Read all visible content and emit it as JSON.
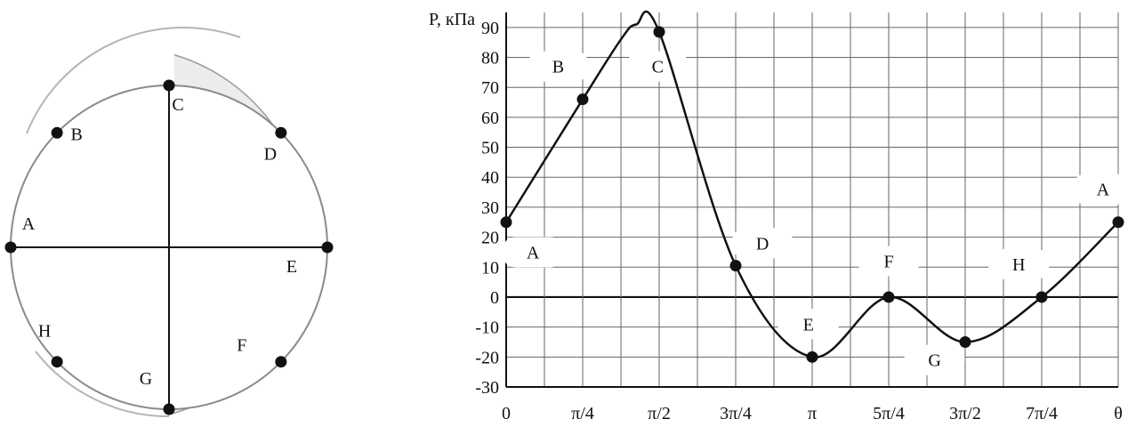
{
  "chart_data": [
    {
      "type": "diagram",
      "points": [
        {
          "label": "A",
          "angle_deg": 180
        },
        {
          "label": "B",
          "angle_deg": 135
        },
        {
          "label": "C",
          "angle_deg": 90
        },
        {
          "label": "D",
          "angle_deg": 45
        },
        {
          "label": "E",
          "angle_deg": 0
        },
        {
          "label": "F",
          "angle_deg": -45
        },
        {
          "label": "G",
          "angle_deg": -90
        },
        {
          "label": "H",
          "angle_deg": -135
        }
      ]
    },
    {
      "type": "line",
      "ylabel": "P, кПа",
      "xlabel": "θ",
      "ylim": [
        -30,
        95
      ],
      "xlim": [
        0,
        8
      ],
      "y_ticks": [
        "-30",
        "-20",
        "-10",
        "0",
        "10",
        "20",
        "30",
        "40",
        "50",
        "60",
        "70",
        "80",
        "90"
      ],
      "x_ticks": [
        "0",
        "π/4",
        "π/2",
        "3π/4",
        "π",
        "5π/4",
        "3π/2",
        "7π/4",
        "θ"
      ],
      "grid": true,
      "curve": {
        "x": [
          0,
          1,
          1.5,
          1.7,
          2,
          3,
          4,
          5,
          6,
          7,
          8
        ],
        "y": [
          25,
          66,
          86,
          91,
          88.5,
          10.5,
          -20,
          0,
          -15,
          0,
          25
        ]
      },
      "points": [
        {
          "label": "A",
          "x": 0,
          "y": 25
        },
        {
          "label": "B",
          "x": 1,
          "y": 66
        },
        {
          "label": "C",
          "x": 2,
          "y": 88.5
        },
        {
          "label": "D",
          "x": 3,
          "y": 10.5
        },
        {
          "label": "E",
          "x": 4,
          "y": -20
        },
        {
          "label": "F",
          "x": 5,
          "y": 0
        },
        {
          "label": "G",
          "x": 6,
          "y": -15
        },
        {
          "label": "H",
          "x": 7,
          "y": 0
        },
        {
          "label": "A",
          "x": 8,
          "y": 25
        }
      ]
    }
  ]
}
